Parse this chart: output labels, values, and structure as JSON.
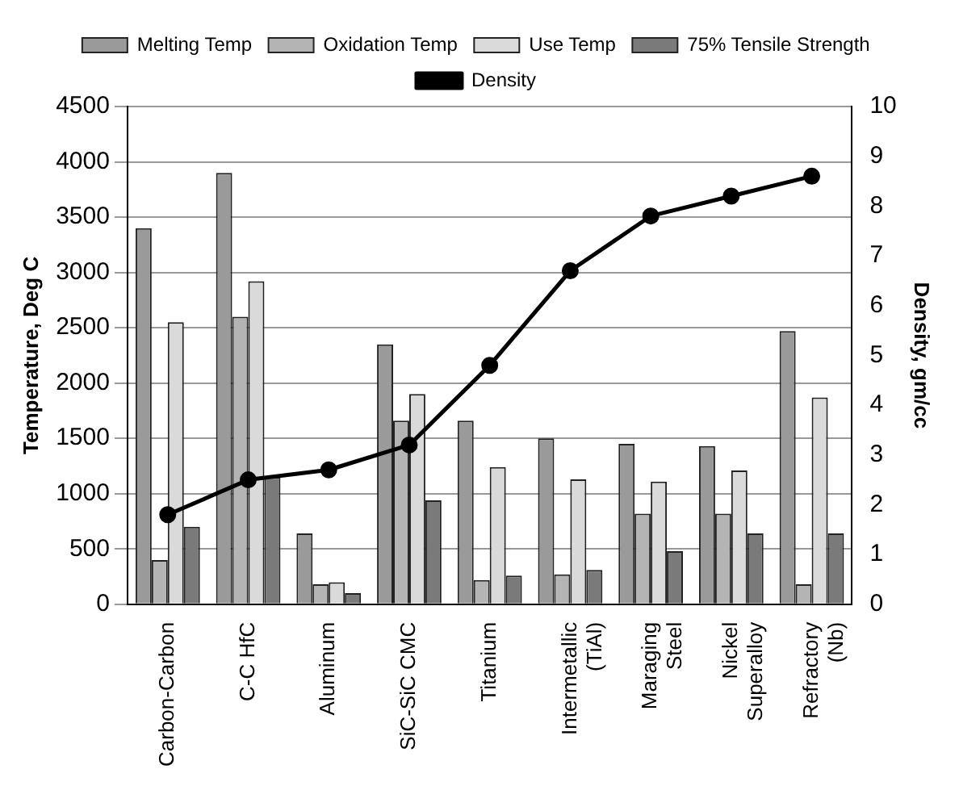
{
  "chart_data": {
    "type": "bar",
    "xlabel": null,
    "ylabel": "Temperature, Deg C",
    "y2label": "Density, gm/cc",
    "categories": [
      "Carbon-Carbon",
      "C-C HfC",
      "Aluminum",
      "SiC-SiC CMC",
      "Titanium",
      "Intermetallic (TiAl)",
      "Maraging Steel",
      "Nickel Superalloy",
      "Refractory (Nb)"
    ],
    "series": [
      {
        "name": "Melting Temp",
        "color": "#9a9a9a",
        "values": [
          3400,
          3900,
          640,
          2350,
          1660,
          1500,
          1450,
          1430,
          2470
        ]
      },
      {
        "name": "Oxidation Temp",
        "color": "#b4b4b4",
        "values": [
          400,
          2600,
          180,
          1660,
          220,
          270,
          820,
          820,
          180
        ]
      },
      {
        "name": "Use Temp",
        "color": "#dadada",
        "values": [
          2550,
          2920,
          200,
          1900,
          1240,
          1130,
          1110,
          1210,
          1870
        ]
      },
      {
        "name": "75% Tensile Strength",
        "color": "#7a7a7a",
        "values": [
          700,
          1150,
          100,
          940,
          260,
          310,
          480,
          640,
          640
        ]
      },
      {
        "name": "Density",
        "type": "line",
        "axis": "y2",
        "color": "#000000",
        "values": [
          1.8,
          2.5,
          2.7,
          3.2,
          4.8,
          6.7,
          7.8,
          8.2,
          8.6
        ]
      }
    ],
    "ylim": [
      0,
      4500
    ],
    "yticks": [
      0,
      500,
      1000,
      1500,
      2000,
      2500,
      3000,
      3500,
      4000,
      4500
    ],
    "y2lim": [
      0,
      10
    ],
    "y2ticks": [
      0,
      1,
      2,
      3,
      4,
      5,
      6,
      7,
      8,
      9,
      10
    ],
    "grid": "y",
    "legend": "top",
    "marker": "circle",
    "line_style": "solid"
  }
}
